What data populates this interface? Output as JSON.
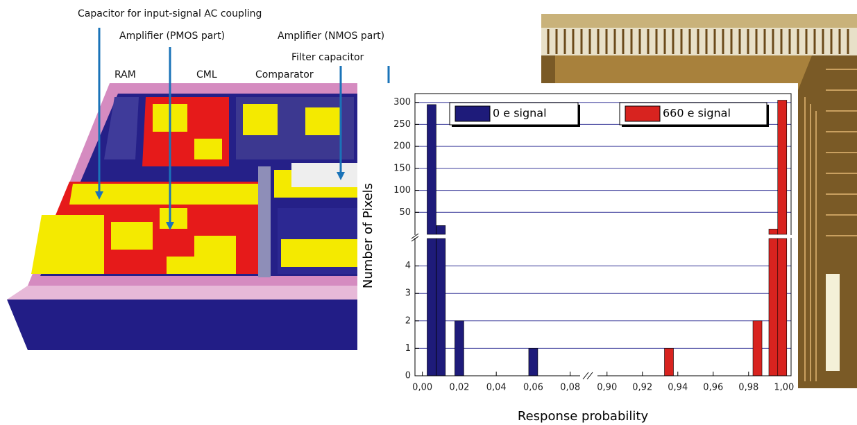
{
  "chart_data": {
    "type": "bar",
    "xlabel": "Response probability",
    "ylabel": "Number of Pixels",
    "annotations": [
      "Capacitor for input-signal AC coupling",
      "Amplifier (PMOS part)",
      "Amplifier (NMOS part)",
      "Filter capacitor",
      "RAM",
      "CML",
      "Comparator"
    ],
    "series": [
      {
        "name": "0 e signal",
        "color": "#1e1b7a",
        "x": [
          0.005,
          0.01,
          0.02,
          0.06
        ],
        "values": [
          295,
          20,
          2,
          1
        ]
      },
      {
        "name": "660 e signal",
        "color": "#d8231f",
        "x": [
          0.935,
          0.985,
          0.994,
          0.999
        ],
        "values": [
          1,
          2,
          12,
          305
        ]
      }
    ],
    "x_segments": [
      {
        "xlim": [
          -0.004,
          0.085
        ],
        "xticks": [
          {
            "value": 0,
            "label": "0,00"
          },
          {
            "value": 0.02,
            "label": "0,02"
          },
          {
            "value": 0.04,
            "label": "0,04"
          },
          {
            "value": 0.06,
            "label": "0,06"
          },
          {
            "value": 0.08,
            "label": "0,08"
          }
        ]
      },
      {
        "xlim": [
          0.895,
          1.004
        ],
        "xticks": [
          {
            "value": 0.9,
            "label": "0,90"
          },
          {
            "value": 0.92,
            "label": "0,92"
          },
          {
            "value": 0.94,
            "label": "0,94"
          },
          {
            "value": 0.96,
            "label": "0,96"
          },
          {
            "value": 0.98,
            "label": "0,98"
          },
          {
            "value": 1,
            "label": "1,00"
          }
        ]
      }
    ],
    "y_segments": [
      {
        "ylim": [
          0,
          5
        ],
        "yticks": [
          0,
          1,
          2,
          3,
          4
        ]
      },
      {
        "ylim": [
          0,
          320
        ],
        "yticks": [
          50,
          100,
          150,
          200,
          250,
          300
        ]
      }
    ],
    "grid": true
  }
}
